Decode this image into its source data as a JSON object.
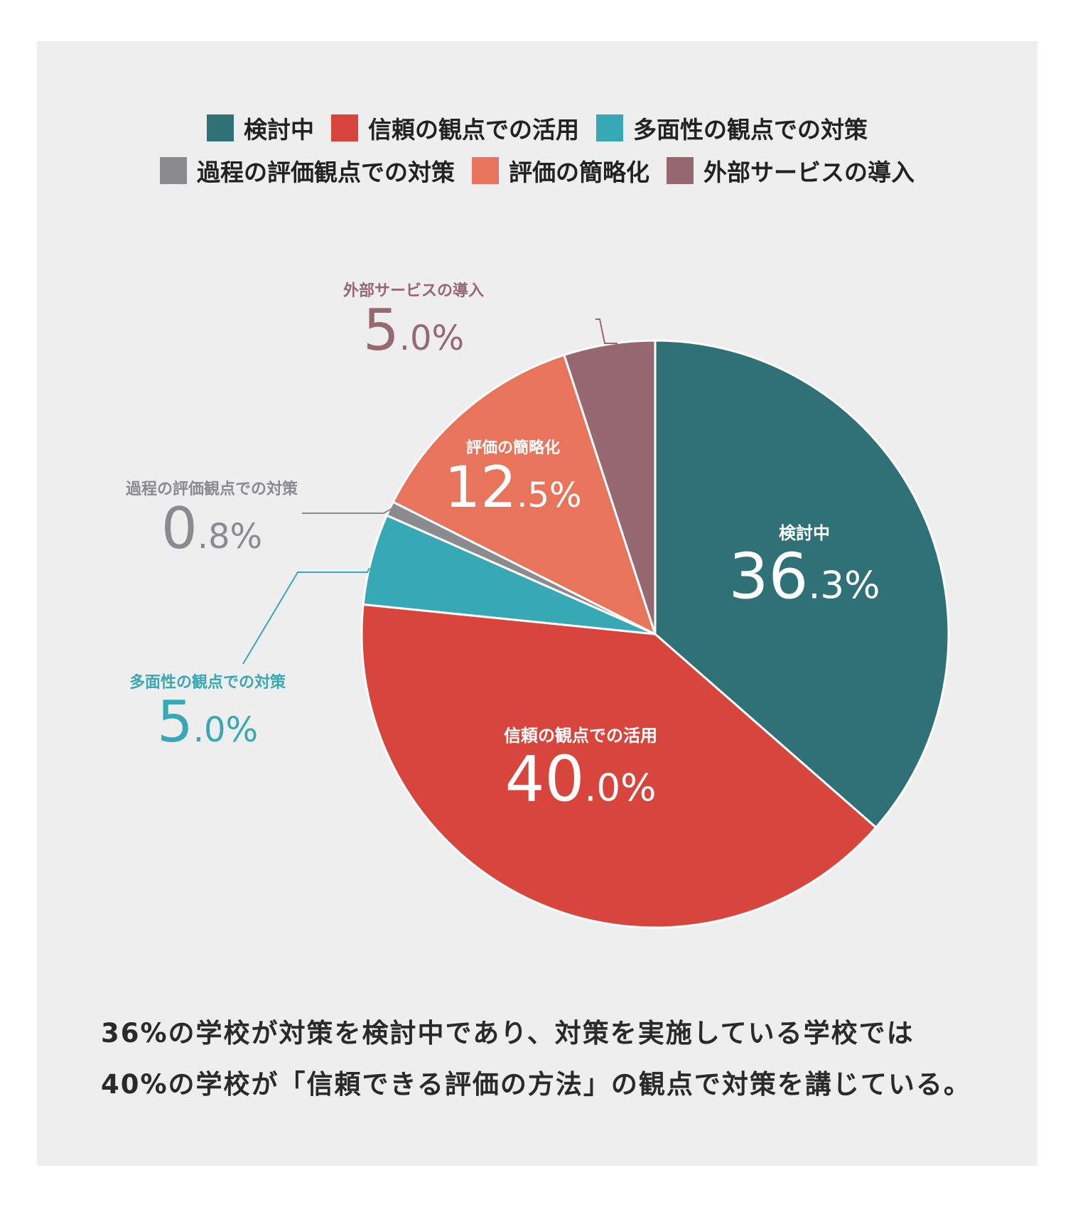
{
  "legend": [
    {
      "label": "検討中",
      "color": "#2f7176"
    },
    {
      "label": "信頼の観点での活用",
      "color": "#d8453d"
    },
    {
      "label": "多面性の観点での対策",
      "color": "#37a9b4"
    },
    {
      "label": "過程の評価観点での対策",
      "color": "#8b8a8f"
    },
    {
      "label": "評価の簡略化",
      "color": "#e8745c"
    },
    {
      "label": "外部サービスの導入",
      "color": "#966872"
    }
  ],
  "chart_data": {
    "type": "pie",
    "slices": [
      {
        "label": "検討中",
        "value": 36.3,
        "int": "36",
        "dec": ".3%",
        "color": "#2f7176"
      },
      {
        "label": "信頼の観点での活用",
        "value": 40.0,
        "int": "40",
        "dec": ".0%",
        "color": "#d8453d"
      },
      {
        "label": "多面性の観点での対策",
        "value": 5.0,
        "int": "5",
        "dec": ".0%",
        "color": "#37a9b4"
      },
      {
        "label": "過程の評価観点での対策",
        "value": 0.8,
        "int": "0",
        "dec": ".8%",
        "color": "#8b8a8f"
      },
      {
        "label": "評価の簡略化",
        "value": 12.5,
        "int": "12",
        "dec": ".5%",
        "color": "#e8745c"
      },
      {
        "label": "外部サービスの導入",
        "value": 5.0,
        "int": "5",
        "dec": ".0%",
        "color": "#966872"
      }
    ],
    "start": "12 o'clock",
    "direction": "clockwise"
  },
  "caption": {
    "line1": "36%の学校が対策を検討中であり、対策を実施している学校では",
    "line2": "40%の学校が「信頼できる評価の方法」の観点で対策を講じている。"
  }
}
